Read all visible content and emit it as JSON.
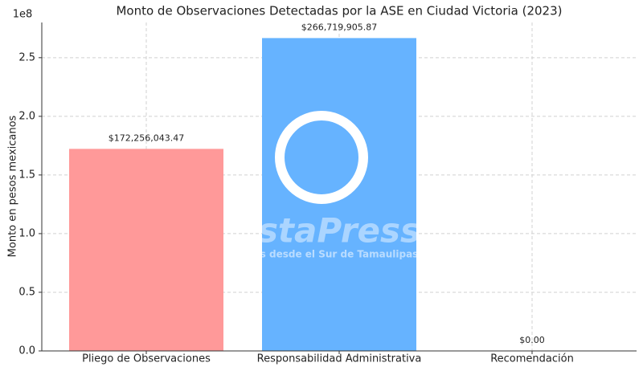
{
  "chart_data": {
    "type": "bar",
    "title": "Monto de Observaciones Detectadas por la ASE en Ciudad Victoria (2023)",
    "y_label": "Monto en pesos mexicanos",
    "y_offset_label": "1e8",
    "categories": [
      "Pliego de Observaciones",
      "Responsabilidad Administrativa",
      "Recomendación"
    ],
    "values": [
      1.7225604347,
      2.6671990587,
      0
    ],
    "value_labels": [
      "$172,256,043.47",
      "$266,719,905.87",
      "$0.00"
    ],
    "colors": [
      "#ff9999",
      "#66b3ff",
      "#99ff99"
    ],
    "ylim": [
      0,
      2.8
    ],
    "yticks": [
      {
        "value": 0,
        "label": "0.0"
      },
      0.5,
      {
        "value": 1,
        "label": "1.0"
      },
      1.5,
      {
        "value": 2,
        "label": "2.0"
      },
      2.5
    ],
    "grid": true,
    "watermark": [
      "staPress",
      "s desde el Sur de Tamaulipas"
    ]
  }
}
